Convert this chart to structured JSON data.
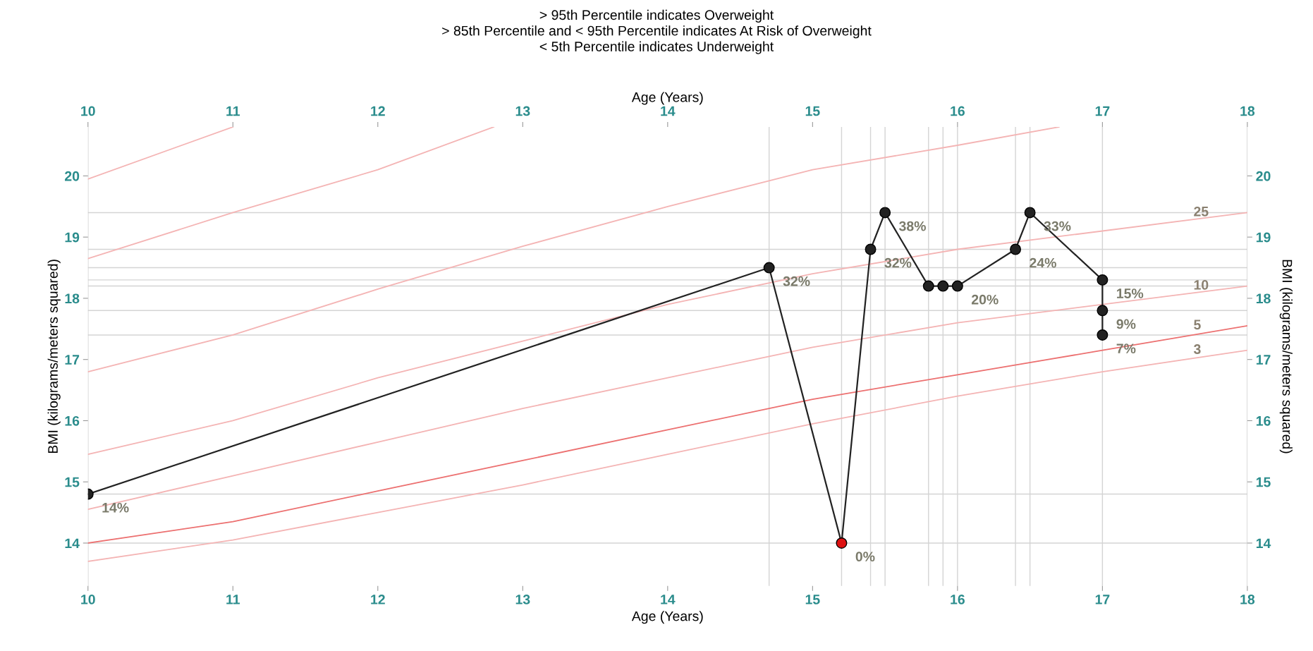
{
  "chart_data": {
    "type": "line",
    "title": "> 95th Percentile indicates Overweight\n> 85th Percentile and < 95th Percentile indicates At Risk of Overweight\n< 5th Percentile indicates Underweight",
    "xlabel": "Age (Years)",
    "x2label": "Age (Years)",
    "ylabel": "BMI (kilograms/meters squared)",
    "y2label": "BMI (kilograms/meters squared)",
    "xlim": [
      10,
      18
    ],
    "xticks": [
      10,
      11,
      12,
      13,
      14,
      15,
      16,
      17,
      18
    ],
    "x2lim": [
      10,
      18
    ],
    "x2ticks": [
      10,
      11,
      12,
      13,
      14,
      15,
      16,
      17,
      18
    ],
    "ylim": [
      13.3,
      20.8
    ],
    "yticks": [
      14,
      15,
      16,
      17,
      18,
      19,
      20
    ],
    "y2lim": [
      13.3,
      20.8
    ],
    "y2ticks": [
      14,
      15,
      16,
      17,
      18,
      19,
      20
    ],
    "grid": false,
    "legend": false,
    "ref_lines": [
      {
        "axis": "y",
        "value": 14.0,
        "color": "#d4d4d4"
      },
      {
        "axis": "y",
        "value": 14.8,
        "color": "#d4d4d4"
      },
      {
        "axis": "y",
        "value": 17.4,
        "color": "#d4d4d4"
      },
      {
        "axis": "y",
        "value": 17.8,
        "color": "#d4d4d4"
      },
      {
        "axis": "y",
        "value": 18.2,
        "color": "#d4d4d4"
      },
      {
        "axis": "y",
        "value": 18.3,
        "color": "#d4d4d4"
      },
      {
        "axis": "y",
        "value": 18.5,
        "color": "#d4d4d4"
      },
      {
        "axis": "y",
        "value": 18.8,
        "color": "#d4d4d4"
      },
      {
        "axis": "y",
        "value": 19.4,
        "color": "#d4d4d4"
      },
      {
        "axis": "x",
        "value": 14.7,
        "color": "#d4d4d4"
      },
      {
        "axis": "x",
        "value": 15.2,
        "color": "#d4d4d4"
      },
      {
        "axis": "x",
        "value": 15.4,
        "color": "#d4d4d4"
      },
      {
        "axis": "x",
        "value": 15.5,
        "color": "#d4d4d4"
      },
      {
        "axis": "x",
        "value": 15.8,
        "color": "#d4d4d4"
      },
      {
        "axis": "x",
        "value": 15.9,
        "color": "#d4d4d4"
      },
      {
        "axis": "x",
        "value": 16.0,
        "color": "#d4d4d4"
      },
      {
        "axis": "x",
        "value": 16.4,
        "color": "#d4d4d4"
      },
      {
        "axis": "x",
        "value": 16.5,
        "color": "#d4d4d4"
      },
      {
        "axis": "x",
        "value": 17.0,
        "color": "#d4d4d4"
      }
    ],
    "series": [
      {
        "color": "#f4b4b4",
        "marker": "none",
        "x": [
          10,
          11
        ],
        "values": [
          19.95,
          20.8
        ]
      },
      {
        "color": "#f4b4b4",
        "marker": "none",
        "x": [
          10,
          11,
          12,
          12.8
        ],
        "values": [
          18.65,
          19.4,
          20.1,
          20.8
        ]
      },
      {
        "color": "#f4b4b4",
        "marker": "none",
        "x": [
          10,
          11,
          12,
          13,
          14,
          15,
          16,
          16.7
        ],
        "values": [
          16.8,
          17.4,
          18.15,
          18.85,
          19.5,
          20.1,
          20.5,
          20.8
        ]
      },
      {
        "name": "25",
        "color": "#f4b4b4",
        "marker": "none",
        "x": [
          10,
          11,
          12,
          13,
          14,
          15,
          16,
          17,
          18
        ],
        "values": [
          15.45,
          16.0,
          16.7,
          17.3,
          17.9,
          18.4,
          18.8,
          19.1,
          19.4
        ]
      },
      {
        "name": "10",
        "color": "#f4b4b4",
        "marker": "none",
        "x": [
          10,
          11,
          12,
          13,
          14,
          15,
          16,
          17,
          18
        ],
        "values": [
          14.55,
          15.1,
          15.65,
          16.2,
          16.7,
          17.2,
          17.6,
          17.9,
          18.2
        ]
      },
      {
        "name": "5",
        "color": "#ec7070",
        "marker": "none",
        "x": [
          10,
          11,
          12,
          13,
          14,
          15,
          16,
          17,
          18
        ],
        "values": [
          14.0,
          14.35,
          14.85,
          15.35,
          15.85,
          16.35,
          16.75,
          17.15,
          17.55
        ]
      },
      {
        "name": "3",
        "color": "#f4b4b4",
        "marker": "none",
        "x": [
          10,
          11,
          12,
          13,
          14,
          15,
          16,
          17,
          18
        ],
        "values": [
          13.7,
          14.05,
          14.5,
          14.95,
          15.45,
          15.95,
          16.4,
          16.8,
          17.15
        ]
      },
      {
        "color": "#222222",
        "marker": "circle",
        "x": [
          10,
          14.7,
          15.2,
          15.4,
          15.5,
          15.8,
          15.9,
          16.0,
          16.4,
          16.5,
          17.0,
          17.0,
          17.0
        ],
        "values": [
          14.8,
          18.5,
          14.0,
          18.8,
          19.4,
          18.2,
          18.2,
          18.2,
          18.8,
          19.4,
          18.3,
          17.8,
          17.4
        ],
        "colors": [
          "#222222",
          "#222222",
          "#dd1111",
          "#222222",
          "#222222",
          "#222222",
          "#222222",
          "#222222",
          "#222222",
          "#222222",
          "#222222",
          "#222222",
          "#222222"
        ]
      }
    ],
    "annotations": [
      {
        "text": "14%",
        "x": 10,
        "y": 14.8
      },
      {
        "text": "32%",
        "x": 14.7,
        "y": 18.5
      },
      {
        "text": "0%",
        "x": 15.2,
        "y": 14.0
      },
      {
        "text": "32%",
        "x": 15.4,
        "y": 18.8
      },
      {
        "text": "38%",
        "x": 15.5,
        "y": 19.4
      },
      {
        "text": "20%",
        "x": 16.0,
        "y": 18.2
      },
      {
        "text": "24%",
        "x": 16.4,
        "y": 18.8
      },
      {
        "text": "33%",
        "x": 16.5,
        "y": 19.4
      },
      {
        "text": "15%",
        "x": 17.0,
        "y": 18.3
      },
      {
        "text": "9%",
        "x": 17.0,
        "y": 17.8
      },
      {
        "text": "7%",
        "x": 17.0,
        "y": 17.4
      }
    ]
  }
}
